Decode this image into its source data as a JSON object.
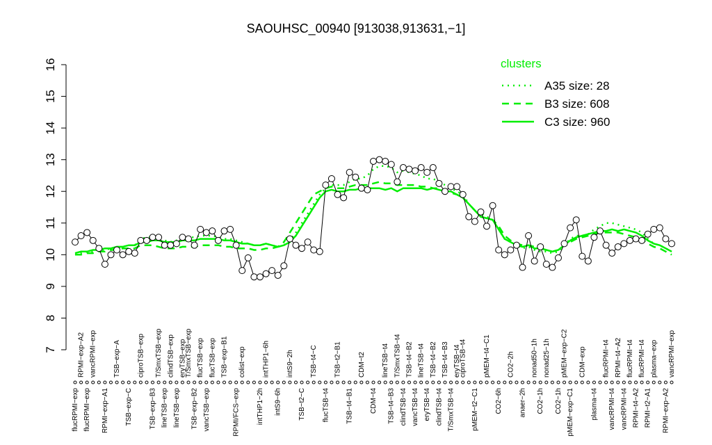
{
  "chart_data": {
    "type": "line",
    "title": "SAOUHSC_00940 [913038,913631,−1]",
    "ylim": [
      7,
      16
    ],
    "yticks": [
      7,
      8,
      9,
      10,
      11,
      12,
      13,
      14,
      15,
      16
    ],
    "point_color": "#000000",
    "values": [
      10.4,
      10.6,
      10.7,
      10.45,
      10.2,
      9.7,
      10.0,
      10.15,
      10.0,
      10.1,
      10.05,
      10.45,
      10.45,
      10.55,
      10.55,
      10.3,
      10.3,
      10.35,
      10.55,
      10.5,
      10.3,
      10.8,
      10.7,
      10.75,
      10.45,
      10.75,
      10.8,
      10.3,
      9.5,
      9.9,
      9.3,
      9.3,
      9.4,
      9.5,
      9.35,
      9.65,
      10.5,
      10.3,
      10.2,
      10.4,
      10.15,
      10.1,
      12.2,
      12.4,
      11.9,
      11.8,
      12.6,
      12.45,
      12.1,
      12.05,
      12.95,
      13.0,
      12.95,
      12.85,
      12.3,
      12.75,
      12.7,
      12.65,
      12.75,
      12.6,
      12.75,
      12.25,
      12.0,
      12.15,
      12.15,
      11.9,
      11.2,
      11.05,
      11.35,
      10.9,
      11.55,
      10.15,
      10.0,
      10.15,
      10.3,
      9.6,
      10.6,
      9.8,
      10.25,
      9.7,
      9.6,
      9.9,
      10.35,
      10.85,
      11.1,
      9.95,
      9.8,
      10.55,
      10.75,
      10.3,
      10.05,
      10.25,
      10.35,
      10.45,
      10.5,
      10.45,
      10.65,
      10.8,
      10.85,
      10.5,
      10.35
    ],
    "top_labels": [
      null,
      "RPMI−exp−A2",
      null,
      "vancRPMI−exp",
      null,
      null,
      null,
      "TSB−exp−A",
      null,
      null,
      null,
      "ciproTSB−exp",
      null,
      null,
      "T/SmxTSB−exp",
      null,
      "clindTSB−exp",
      null,
      "eryTSB−exp",
      "T/SmxTSB−exp",
      null,
      "flucTSB−exp",
      null,
      "flucTSB−exp",
      null,
      "TSB−exp−B1",
      null,
      null,
      "colist−exp",
      null,
      null,
      null,
      "intTHP1−6h",
      null,
      null,
      null,
      "intS9−2h",
      null,
      null,
      null,
      "TSB−t4−C",
      null,
      null,
      null,
      "TSB−t2−B1",
      null,
      null,
      null,
      "CDM−t2",
      null,
      null,
      null,
      "lineTSB−t4",
      null,
      "T/SmxTSB−t4",
      null,
      "TSB−t4−B2",
      null,
      "lineTSB−t4",
      null,
      "TSB−t4−B2",
      null,
      "TSB−t4−B3",
      null,
      "eryTSB−t4",
      "ciproTSB−t4",
      null,
      null,
      null,
      "pMEM−t4−C1",
      null,
      null,
      null,
      "CO2−2h",
      null,
      null,
      null,
      "nonad50−1h",
      null,
      "nonad25−1h",
      null,
      null,
      "pMEM−exp−C2",
      null,
      null,
      "CDM−exp",
      null,
      null,
      null,
      "flucRPMI−t4",
      null,
      "RPMI−t4−A2",
      null,
      "flucRPMI−t4",
      null,
      "flucRPMI−t4",
      null,
      "plasma−exp",
      null,
      null,
      "vancRPMI−exp"
    ],
    "bottom_labels": [
      "flucRPMI−exp",
      null,
      "flucRPMI−exp",
      null,
      null,
      "RPMI−exp−A1",
      null,
      null,
      null,
      "TSB−exp−C",
      null,
      null,
      null,
      "TSB−exp−B3",
      null,
      "lineTSB−exp",
      null,
      "lineTSB−exp",
      null,
      null,
      "TSB−exp−B2",
      null,
      "vancTSB−exp",
      null,
      null,
      null,
      null,
      "RPMI/FCS−exp",
      null,
      null,
      null,
      "intTHP1−2h",
      null,
      null,
      "intS9−6h",
      null,
      null,
      null,
      "TSB−t2−C",
      null,
      null,
      null,
      "flucTSB−t4",
      null,
      null,
      null,
      "TSB−t4−B1",
      null,
      null,
      null,
      "CDM−t4",
      null,
      null,
      "TSB−t4−B3",
      null,
      "clindTSB−t4",
      null,
      "vancTSB−t4",
      null,
      "eryTSB−t4",
      null,
      "clindTSB−t4",
      null,
      "T/SmxTSB−t4",
      null,
      null,
      null,
      "pMEM−t2−C1",
      null,
      null,
      null,
      "CO2−6h",
      null,
      null,
      null,
      "anaer−2h",
      null,
      null,
      "CO2−1h",
      null,
      null,
      "CO2−1h",
      null,
      "pMEM−exp−C1",
      null,
      null,
      null,
      "plasma−t4",
      null,
      null,
      "vancRPMI−t4",
      null,
      "vancRPMI−t4",
      null,
      "RPMI−t4−A2",
      null,
      "RPMI−t2−A1",
      null,
      null,
      "RPMI−exp−A2",
      null
    ],
    "legend_title": "clusters",
    "legend": "topright",
    "series": [
      {
        "name": "A35 size: 28",
        "color": "#00ee00",
        "style": "dotted",
        "values": [
          10.0,
          10.05,
          10.1,
          10.1,
          10.15,
          10.15,
          10.2,
          10.2,
          10.25,
          10.3,
          10.3,
          10.5,
          10.55,
          10.55,
          10.5,
          10.45,
          10.4,
          10.45,
          10.5,
          10.55,
          10.55,
          10.6,
          10.6,
          10.6,
          10.55,
          10.5,
          10.5,
          10.45,
          10.4,
          10.35,
          10.3,
          10.3,
          10.35,
          10.3,
          10.25,
          10.3,
          10.45,
          10.7,
          11.0,
          11.3,
          11.6,
          11.9,
          12.1,
          12.2,
          12.2,
          12.2,
          12.3,
          12.4,
          12.4,
          12.5,
          12.7,
          12.8,
          12.8,
          12.75,
          12.6,
          12.65,
          12.6,
          12.55,
          12.5,
          12.4,
          12.4,
          12.3,
          12.2,
          12.1,
          12.0,
          11.9,
          11.6,
          11.4,
          11.3,
          11.2,
          11.1,
          10.8,
          10.5,
          10.4,
          10.3,
          10.2,
          10.25,
          10.15,
          10.1,
          10.1,
          10.05,
          10.1,
          10.3,
          10.5,
          10.6,
          10.6,
          10.65,
          10.8,
          10.9,
          11.0,
          11.0,
          10.95,
          10.9,
          10.85,
          10.8,
          10.7,
          10.5,
          10.35,
          10.3,
          10.2,
          10.1
        ]
      },
      {
        "name": "B3 size: 608",
        "color": "#00ee00",
        "style": "dashed",
        "values": [
          10.0,
          10.0,
          10.05,
          10.05,
          10.1,
          10.1,
          10.15,
          10.15,
          10.2,
          10.2,
          10.2,
          10.3,
          10.3,
          10.3,
          10.25,
          10.2,
          10.2,
          10.2,
          10.25,
          10.25,
          10.25,
          10.3,
          10.3,
          10.3,
          10.3,
          10.25,
          10.25,
          10.2,
          10.2,
          10.2,
          10.15,
          10.15,
          10.2,
          10.2,
          10.25,
          10.4,
          10.7,
          11.0,
          11.3,
          11.6,
          11.9,
          12.0,
          12.1,
          12.15,
          12.1,
          12.1,
          12.15,
          12.2,
          12.2,
          12.2,
          12.25,
          12.3,
          12.25,
          12.25,
          12.2,
          12.2,
          12.2,
          12.2,
          12.15,
          12.15,
          12.1,
          12.1,
          12.0,
          11.95,
          11.9,
          11.8,
          11.6,
          11.4,
          11.2,
          11.15,
          11.1,
          10.9,
          10.6,
          10.45,
          10.35,
          10.3,
          10.3,
          10.25,
          10.2,
          10.15,
          10.1,
          10.15,
          10.3,
          10.4,
          10.5,
          10.55,
          10.6,
          10.65,
          10.7,
          10.7,
          10.7,
          10.7,
          10.65,
          10.6,
          10.55,
          10.5,
          10.35,
          10.25,
          10.2,
          10.1,
          10.0
        ]
      },
      {
        "name": "C3 size: 960",
        "color": "#00ee00",
        "style": "solid",
        "values": [
          10.05,
          10.1,
          10.1,
          10.15,
          10.15,
          10.2,
          10.2,
          10.25,
          10.25,
          10.3,
          10.3,
          10.4,
          10.4,
          10.45,
          10.45,
          10.4,
          10.4,
          10.4,
          10.45,
          10.45,
          10.45,
          10.5,
          10.5,
          10.5,
          10.5,
          10.45,
          10.45,
          10.4,
          10.35,
          10.35,
          10.3,
          10.3,
          10.35,
          10.3,
          10.25,
          10.3,
          10.4,
          10.6,
          10.9,
          11.2,
          11.5,
          11.8,
          12.0,
          12.05,
          12.0,
          12.0,
          12.05,
          12.05,
          12.1,
          12.1,
          12.1,
          12.1,
          12.05,
          12.1,
          12.0,
          12.1,
          12.1,
          12.1,
          12.1,
          12.05,
          12.1,
          12.05,
          12.0,
          12.0,
          11.9,
          11.8,
          11.6,
          11.4,
          11.2,
          11.15,
          11.1,
          10.8,
          10.5,
          10.4,
          10.3,
          10.25,
          10.3,
          10.2,
          10.2,
          10.15,
          10.1,
          10.15,
          10.3,
          10.45,
          10.55,
          10.6,
          10.65,
          10.7,
          10.75,
          10.75,
          10.8,
          10.75,
          10.8,
          10.75,
          10.7,
          10.6,
          10.45,
          10.35,
          10.3,
          10.2,
          10.1
        ]
      }
    ]
  }
}
